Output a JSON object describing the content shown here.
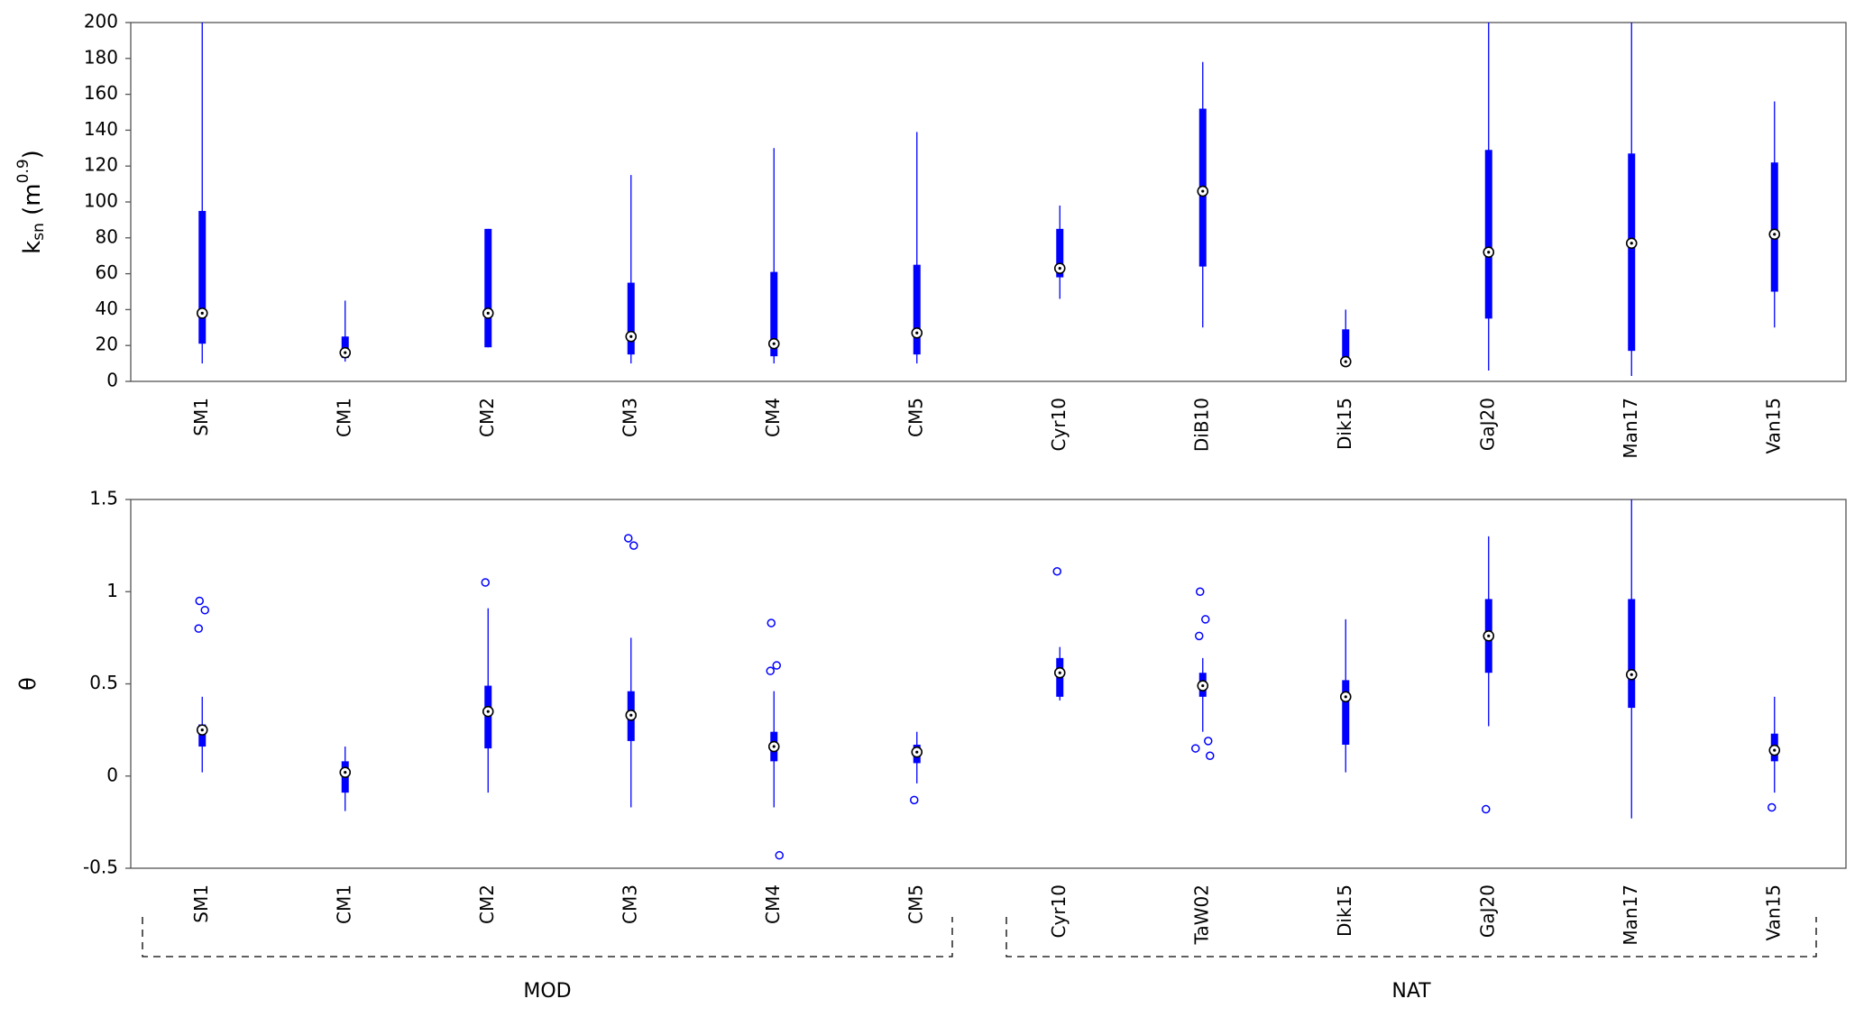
{
  "chart_data": [
    {
      "type": "box",
      "color": "#0000ff",
      "y_label": {
        "base": "k",
        "sub": "sn",
        "unit": " (m",
        "sup": "0.9",
        "close": ")"
      },
      "ylim": [
        0,
        200
      ],
      "yticks": [
        0,
        20,
        40,
        60,
        80,
        100,
        120,
        140,
        160,
        180,
        200
      ],
      "categories": [
        "SM1",
        "CM1",
        "CM2",
        "CM3",
        "CM4",
        "CM5",
        "Cyr10",
        "DiB10",
        "Dik15",
        "GaJ20",
        "Man17",
        "Van15"
      ],
      "boxes": [
        {
          "low": 10,
          "q1": 21,
          "median": 38,
          "q3": 95,
          "high": 200,
          "outliers": []
        },
        {
          "low": 11,
          "q1": 13,
          "median": 16,
          "q3": 25,
          "high": 45,
          "outliers": []
        },
        {
          "low": 19,
          "q1": 19,
          "median": 38,
          "q3": 85,
          "high": 85,
          "outliers": []
        },
        {
          "low": 10,
          "q1": 15,
          "median": 25,
          "q3": 55,
          "high": 115,
          "outliers": []
        },
        {
          "low": 10,
          "q1": 14,
          "median": 21,
          "q3": 61,
          "high": 130,
          "outliers": []
        },
        {
          "low": 10,
          "q1": 15,
          "median": 27,
          "q3": 65,
          "high": 139,
          "outliers": []
        },
        {
          "low": 46,
          "q1": 58,
          "median": 63,
          "q3": 85,
          "high": 98,
          "outliers": []
        },
        {
          "low": 30,
          "q1": 64,
          "median": 106,
          "q3": 152,
          "high": 178,
          "outliers": []
        },
        {
          "low": 10,
          "q1": 10,
          "median": 11,
          "q3": 29,
          "high": 40,
          "outliers": []
        },
        {
          "low": 6,
          "q1": 35,
          "median": 72,
          "q3": 129,
          "high": 200,
          "outliers": []
        },
        {
          "low": 3,
          "q1": 17,
          "median": 77,
          "q3": 127,
          "high": 200,
          "outliers": []
        },
        {
          "low": 30,
          "q1": 50,
          "median": 82,
          "q3": 122,
          "high": 156,
          "outliers": []
        }
      ]
    },
    {
      "type": "box",
      "color": "#0000ff",
      "y_label": "θ",
      "ylim": [
        -0.5,
        1.5
      ],
      "yticks": [
        -0.5,
        0,
        0.5,
        1,
        1.5
      ],
      "categories": [
        "SM1",
        "CM1",
        "CM2",
        "CM3",
        "CM4",
        "CM5",
        "Cyr10",
        "TaW02",
        "Dik15",
        "GaJ20",
        "Man17",
        "Van15"
      ],
      "groups": [
        "MOD",
        "NAT"
      ],
      "boxes": [
        {
          "low": 0.02,
          "q1": 0.16,
          "median": 0.25,
          "q3": 0.28,
          "high": 0.43,
          "outliers": [
            0.95,
            0.9,
            0.8
          ]
        },
        {
          "low": -0.19,
          "q1": -0.09,
          "median": 0.02,
          "q3": 0.08,
          "high": 0.16,
          "outliers": []
        },
        {
          "low": -0.09,
          "q1": 0.15,
          "median": 0.35,
          "q3": 0.49,
          "high": 0.91,
          "outliers": [
            1.05
          ]
        },
        {
          "low": -0.17,
          "q1": 0.19,
          "median": 0.33,
          "q3": 0.46,
          "high": 0.75,
          "outliers": [
            1.29,
            1.25
          ]
        },
        {
          "low": -0.17,
          "q1": 0.08,
          "median": 0.16,
          "q3": 0.24,
          "high": 0.46,
          "outliers": [
            0.83,
            0.6,
            0.57,
            -0.43
          ]
        },
        {
          "low": -0.04,
          "q1": 0.07,
          "median": 0.13,
          "q3": 0.17,
          "high": 0.24,
          "outliers": [
            -0.13
          ]
        },
        {
          "low": 0.41,
          "q1": 0.43,
          "median": 0.56,
          "q3": 0.64,
          "high": 0.7,
          "outliers": [
            1.11
          ]
        },
        {
          "low": 0.24,
          "q1": 0.43,
          "median": 0.49,
          "q3": 0.56,
          "high": 0.64,
          "outliers": [
            1.0,
            0.85,
            0.76,
            0.19,
            0.15,
            0.11
          ]
        },
        {
          "low": 0.02,
          "q1": 0.17,
          "median": 0.43,
          "q3": 0.52,
          "high": 0.85,
          "outliers": []
        },
        {
          "low": 0.27,
          "q1": 0.56,
          "median": 0.76,
          "q3": 0.96,
          "high": 1.3,
          "outliers": [
            -0.18
          ]
        },
        {
          "low": -0.23,
          "q1": 0.37,
          "median": 0.55,
          "q3": 0.96,
          "high": 1.5,
          "outliers": []
        },
        {
          "low": -0.09,
          "q1": 0.08,
          "median": 0.14,
          "q3": 0.23,
          "high": 0.43,
          "outliers": [
            -0.17
          ]
        }
      ]
    }
  ]
}
